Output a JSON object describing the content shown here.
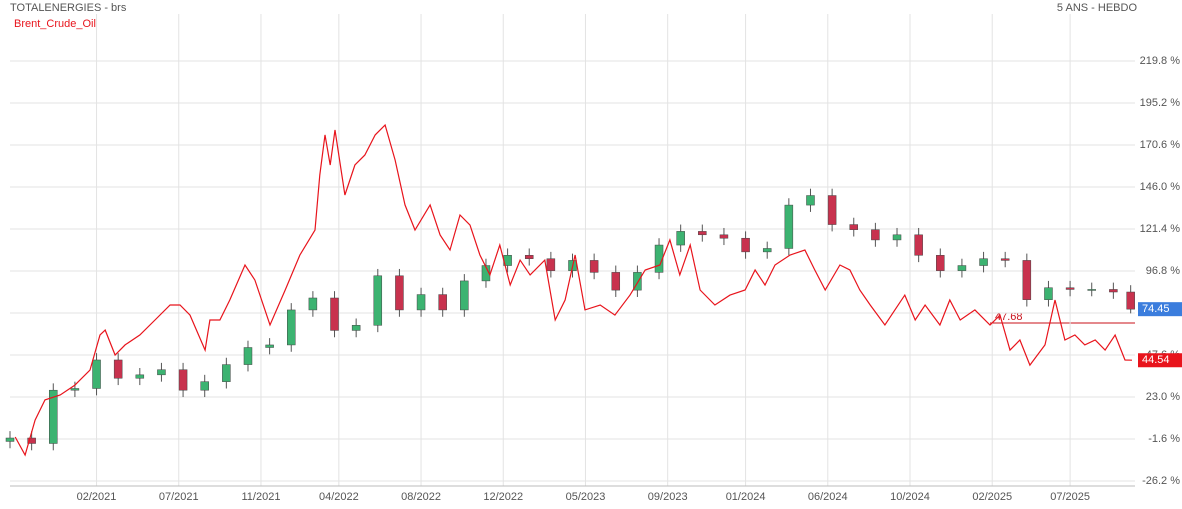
{
  "chart_data": {
    "type": "candlestick",
    "title": "TOTALENERGIES - brs",
    "subtitle": "5 ANS - HEBDO",
    "annotation": "47.68",
    "up_color": "#3cb371",
    "down_color": "#c8324e",
    "grid": true,
    "xlim": [
      0,
      260
    ],
    "xticks": [
      {
        "value": 20,
        "label": "02/2021"
      },
      {
        "value": 39,
        "label": "07/2021"
      },
      {
        "value": 58,
        "label": "11/2021"
      },
      {
        "value": 76,
        "label": "04/2022"
      },
      {
        "value": 95,
        "label": "08/2022"
      },
      {
        "value": 114,
        "label": "12/2022"
      },
      {
        "value": 133,
        "label": "05/2023"
      },
      {
        "value": 152,
        "label": "09/2023"
      },
      {
        "value": 170,
        "label": "01/2024"
      },
      {
        "value": 189,
        "label": "06/2024"
      },
      {
        "value": 208,
        "label": "10/2024"
      },
      {
        "value": 227,
        "label": "02/2025"
      },
      {
        "value": 245,
        "label": "07/2025"
      }
    ],
    "ylim": [
      -29.1,
      247.3
    ],
    "yticks": [
      {
        "value": -26.2,
        "label": "-26.2 %"
      },
      {
        "value": -1.6,
        "label": "-1.6 %"
      },
      {
        "value": 23.0,
        "label": "23.0 %"
      },
      {
        "value": 47.6,
        "label": "47.6 %"
      },
      {
        "value": 72.2,
        "label": "72.2 %"
      },
      {
        "value": 96.8,
        "label": "96.8 %"
      },
      {
        "value": 121.4,
        "label": "121.4 %"
      },
      {
        "value": 146.0,
        "label": "146.0 %"
      },
      {
        "value": 170.6,
        "label": "170.6 %"
      },
      {
        "value": 195.2,
        "label": "195.2 %"
      },
      {
        "value": 219.8,
        "label": "219.8 %"
      }
    ],
    "candles": {
      "last_value": 74.45,
      "last_color": "#3b7ddd",
      "x": [
        0,
        5,
        10,
        15,
        20,
        25,
        30,
        35,
        40,
        45,
        50,
        55,
        60,
        65,
        70,
        75,
        80,
        85,
        90,
        95,
        100,
        105,
        110,
        115,
        120,
        125,
        130,
        135,
        140,
        145,
        150,
        155,
        160,
        165,
        170,
        175,
        180,
        185,
        190,
        195,
        200,
        205,
        210,
        215,
        220,
        225,
        230,
        235,
        240,
        245,
        250,
        255,
        259
      ],
      "open": [
        -3,
        -1.0,
        -4.2,
        27,
        28,
        44.7,
        34,
        36,
        39,
        27,
        32,
        42,
        52,
        53.5,
        74,
        81,
        62,
        65,
        94,
        74,
        83,
        74,
        91,
        100,
        106,
        104,
        97,
        103,
        96,
        85.6,
        96,
        112,
        120,
        118,
        116,
        108,
        110,
        135.4,
        141,
        124,
        121,
        115,
        118,
        106,
        97,
        100,
        104,
        103,
        80,
        87,
        86,
        86,
        84.5
      ],
      "high": [
        3,
        3,
        31,
        32,
        48.7,
        48.7,
        40,
        43,
        43,
        36,
        46,
        56,
        57.5,
        78,
        85,
        85,
        69,
        98,
        98,
        87,
        87,
        95,
        104,
        110,
        110,
        108,
        107,
        107,
        100,
        100,
        116,
        124,
        124,
        122,
        120,
        114,
        139.4,
        145,
        145,
        128,
        125,
        122,
        122,
        110,
        104,
        108,
        108,
        107,
        91,
        91,
        90,
        90,
        88.5
      ],
      "low": [
        -7,
        -8.2,
        -8.2,
        23,
        24,
        30,
        30,
        32,
        23,
        23,
        28,
        38,
        48,
        49.5,
        70,
        58,
        58,
        61,
        70,
        70,
        70,
        70,
        87,
        96,
        100,
        93,
        93,
        92,
        81.6,
        81.6,
        92,
        108,
        114,
        112,
        104,
        104,
        106,
        131.4,
        120,
        117,
        111,
        111,
        102,
        93,
        93,
        96,
        99,
        76,
        76,
        82,
        82,
        80.5,
        72
      ],
      "close": [
        -1.0,
        -4.2,
        27,
        28,
        44.7,
        34,
        36,
        39,
        27,
        32,
        42,
        52,
        53.5,
        74,
        81,
        62,
        65,
        94,
        74,
        83,
        74,
        91,
        100,
        106,
        104,
        97,
        103,
        96,
        85.6,
        96,
        112,
        120,
        118,
        116,
        108,
        110,
        135.4,
        141,
        124,
        121,
        115,
        118,
        106,
        97,
        100,
        104,
        103,
        80,
        87,
        86,
        86,
        84.5,
        74.45
      ]
    },
    "series": [
      {
        "name": "Brent_Crude_Oil",
        "type": "line",
        "color": "#e8141c",
        "last_value": 44.54,
        "x": [
          1.2,
          3.5,
          5.8,
          8.1,
          11.6,
          15.0,
          18.5,
          20.8,
          22.0,
          24.3,
          26.6,
          30.0,
          33.5,
          37.0,
          39.3,
          41.6,
          45.1,
          46.2,
          48.5,
          50.8,
          54.3,
          56.6,
          60.1,
          63.6,
          67.0,
          70.5,
          71.6,
          72.8,
          74.0,
          75.1,
          77.4,
          79.7,
          82.0,
          84.4,
          86.7,
          89.0,
          91.3,
          93.6,
          97.1,
          99.4,
          101.7,
          104.0,
          106.3,
          108.6,
          110.9,
          113.2,
          115.6,
          117.9,
          120.2,
          123.6,
          126.0,
          128.3,
          130.6,
          132.9,
          136.4,
          139.8,
          143.3,
          146.8,
          150.2,
          152.5,
          154.8,
          157.2,
          159.5,
          162.9,
          166.4,
          169.9,
          172.2,
          174.5,
          176.8,
          180.3,
          183.7,
          186.0,
          188.4,
          191.8,
          194.1,
          196.4,
          198.8,
          202.2,
          204.5,
          206.8,
          209.2,
          211.5,
          214.9,
          217.2,
          219.6,
          223.0,
          226.5,
          228.8,
          231.1,
          233.4,
          235.7,
          239.2,
          241.5,
          243.8,
          246.1,
          248.4,
          250.8,
          253.1,
          255.4,
          257.7,
          259.3
        ],
        "values": [
          -0.4,
          -11.0,
          9.5,
          21.3,
          24.2,
          30.0,
          38.8,
          59.3,
          62.2,
          47.6,
          53.5,
          59.3,
          68.1,
          76.9,
          76.9,
          71.0,
          50.5,
          68.1,
          68.1,
          79.8,
          100.3,
          91.5,
          65.2,
          85.7,
          106.2,
          120.8,
          153.0,
          176.5,
          158.9,
          179.4,
          141.3,
          158.9,
          164.7,
          176.5,
          182.3,
          161.8,
          135.5,
          120.8,
          135.5,
          117.9,
          109.1,
          129.6,
          123.7,
          106.2,
          94.5,
          112.0,
          88.6,
          103.2,
          94.5,
          103.2,
          68.1,
          79.8,
          106.2,
          74.0,
          76.9,
          71.0,
          82.7,
          97.4,
          100.3,
          115.0,
          94.5,
          112.0,
          85.7,
          76.9,
          82.7,
          85.7,
          97.4,
          88.6,
          100.3,
          106.2,
          109.1,
          97.4,
          85.7,
          100.3,
          97.4,
          85.7,
          76.9,
          65.2,
          74.0,
          82.7,
          68.1,
          76.9,
          65.2,
          79.8,
          68.1,
          74.0,
          65.2,
          71.0,
          50.5,
          56.4,
          41.7,
          53.5,
          79.8,
          56.4,
          59.3,
          53.5,
          56.4,
          50.5,
          59.3,
          44.7,
          44.54
        ]
      }
    ]
  }
}
